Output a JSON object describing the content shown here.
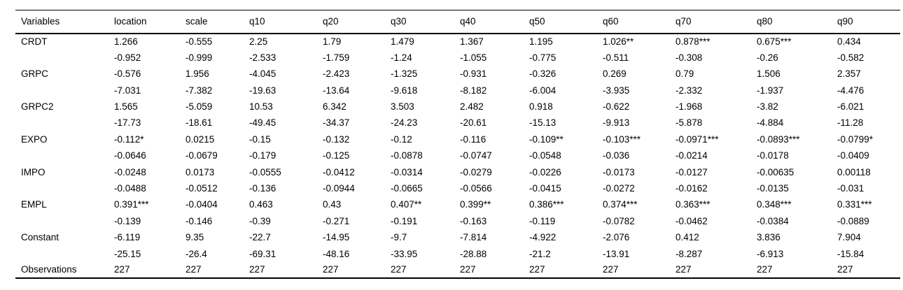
{
  "chart_data": {
    "type": "table",
    "title": "",
    "columns": [
      "Variables",
      "location",
      "scale",
      "q10",
      "q20",
      "q30",
      "q40",
      "q50",
      "q60",
      "q70",
      "q80",
      "q90"
    ],
    "rows": [
      [
        "CRDT",
        "1.266",
        "-0.555",
        "2.25",
        "1.79",
        "1.479",
        "1.367",
        "1.195",
        "1.026**",
        "0.878***",
        "0.675***",
        "0.434"
      ],
      [
        "",
        "-0.952",
        "-0.999",
        "-2.533",
        "-1.759",
        "-1.24",
        "-1.055",
        "-0.775",
        "-0.511",
        "-0.308",
        "-0.26",
        "-0.582"
      ],
      [
        "GRPC",
        "-0.576",
        "1.956",
        "-4.045",
        "-2.423",
        "-1.325",
        "-0.931",
        "-0.326",
        "0.269",
        "0.79",
        "1.506",
        "2.357"
      ],
      [
        "",
        "-7.031",
        "-7.382",
        "-19.63",
        "-13.64",
        "-9.618",
        "-8.182",
        "-6.004",
        "-3.935",
        "-2.332",
        "-1.937",
        "-4.476"
      ],
      [
        "GRPC2",
        "1.565",
        "-5.059",
        "10.53",
        "6.342",
        "3.503",
        "2.482",
        "0.918",
        "-0.622",
        "-1.968",
        "-3.82",
        "-6.021"
      ],
      [
        "",
        "-17.73",
        "-18.61",
        "-49.45",
        "-34.37",
        "-24.23",
        "-20.61",
        "-15.13",
        "-9.913",
        "-5.878",
        "-4.884",
        "-11.28"
      ],
      [
        "EXPO",
        "-0.112*",
        "0.0215",
        "-0.15",
        "-0.132",
        "-0.12",
        "-0.116",
        "-0.109**",
        "-0.103***",
        "-0.0971***",
        "-0.0893***",
        "-0.0799*"
      ],
      [
        "",
        "-0.0646",
        "-0.0679",
        "-0.179",
        "-0.125",
        "-0.0878",
        "-0.0747",
        "-0.0548",
        "-0.036",
        "-0.0214",
        "-0.0178",
        "-0.0409"
      ],
      [
        "IMPO",
        "-0.0248",
        "0.0173",
        "-0.0555",
        "-0.0412",
        "-0.0314",
        "-0.0279",
        "-0.0226",
        "-0.0173",
        "-0.0127",
        "-0.00635",
        "0.00118"
      ],
      [
        "",
        "-0.0488",
        "-0.0512",
        "-0.136",
        "-0.0944",
        "-0.0665",
        "-0.0566",
        "-0.0415",
        "-0.0272",
        "-0.0162",
        "-0.0135",
        "-0.031"
      ],
      [
        "EMPL",
        "0.391***",
        "-0.0404",
        "0.463",
        "0.43",
        "0.407**",
        "0.399**",
        "0.386***",
        "0.374***",
        "0.363***",
        "0.348***",
        "0.331***"
      ],
      [
        "",
        "-0.139",
        "-0.146",
        "-0.39",
        "-0.271",
        "-0.191",
        "-0.163",
        "-0.119",
        "-0.0782",
        "-0.0462",
        "-0.0384",
        "-0.0889"
      ],
      [
        "Constant",
        "-6.119",
        "9.35",
        "-22.7",
        "-14.95",
        "-9.7",
        "-7.814",
        "-4.922",
        "-2.076",
        "0.412",
        "3.836",
        "7.904"
      ],
      [
        "",
        "-25.15",
        "-26.4",
        "-69.31",
        "-48.16",
        "-33.95",
        "-28.88",
        "-21.2",
        "-13.91",
        "-8.287",
        "-6.913",
        "-15.84"
      ],
      [
        "Observations",
        "227",
        "227",
        "227",
        "227",
        "227",
        "227",
        "227",
        "227",
        "227",
        "227",
        "227"
      ]
    ]
  }
}
